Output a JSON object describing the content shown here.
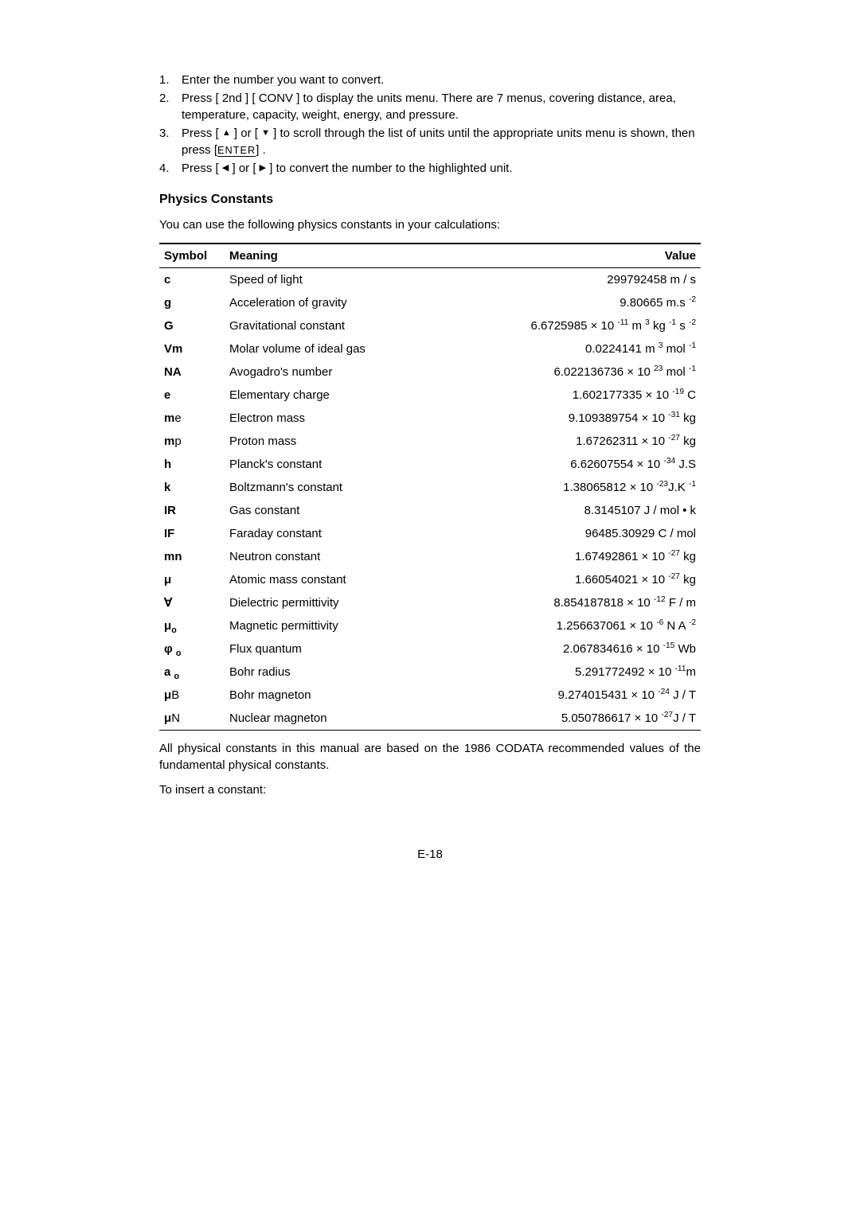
{
  "steps": [
    {
      "num": "1.",
      "html": "Enter the number you want to convert."
    },
    {
      "num": "2.",
      "html": "Press [ 2nd ] [ CONV ] to display the units menu. There are 7 menus, covering distance, area, temperature, capacity, weight, energy, and pressure."
    },
    {
      "num": "3.",
      "html": "Press [ <span class='tri'>▲</span> ] or [ <span class='tri'>▼</span> ] to scroll through the list of units until the appropriate units menu is shown, then press [<span class='enter-key'>ENTER</span>] ."
    },
    {
      "num": "4.",
      "html": "Press [ <span class='tri'>◀</span> ] or [ <span class='tri'>▶</span> ] to convert the number to the highlighted unit."
    }
  ],
  "section_title": "Physics Constants",
  "intro": "You can use the following physics constants in your calculations:",
  "header": {
    "symbol": "Symbol",
    "meaning": "Meaning",
    "value": "Value"
  },
  "rows": [
    {
      "sym": "c",
      "mean": "Speed of light",
      "val": "299792458 m / s"
    },
    {
      "sym": "g",
      "mean": "Acceleration of gravity",
      "val": "9.80665 m.s <sup>-2</sup>"
    },
    {
      "sym": "G",
      "mean": "Gravitational constant",
      "val": "6.6725985 × 10 <sup>-11</sup> m <sup>3</sup> kg <sup>-1</sup> s <sup>-2</sup>"
    },
    {
      "sym": "Vm",
      "mean": "Molar volume of ideal gas",
      "val": "0.0224141 m <sup>3</sup> mol <sup>-1</sup>"
    },
    {
      "sym": "NA",
      "mean": "Avogadro's number",
      "val": "6.022136736 × 10 <sup>23</sup> mol <sup>-1</sup>"
    },
    {
      "sym": "e",
      "mean": "Elementary charge",
      "val": "1.602177335 × 10 <sup>-19</sup> C"
    },
    {
      "sym": "m<span style='font-weight:normal'>e</span>",
      "mean": "Electron mass",
      "val": "9.109389754 × 10 <sup>-31</sup> kg"
    },
    {
      "sym": "m<span style='font-weight:normal'>p</span>",
      "mean": "Proton mass",
      "val": "1.67262311 × 10 <sup>-27</sup> kg"
    },
    {
      "sym": "h",
      "mean": "Planck's constant",
      "val": "6.62607554 × 10 <sup>-34</sup> J.S"
    },
    {
      "sym": "k",
      "mean": "Boltzmann's constant",
      "val": "1.38065812 × 10 <sup>-23</sup>J.K <sup>-1</sup>"
    },
    {
      "sym": "IR",
      "mean": "Gas constant",
      "val": "8.3145107 J / mol • k"
    },
    {
      "sym": "IF",
      "mean": "Faraday constant",
      "val": "96485.30929 C / mol"
    },
    {
      "sym": "mn",
      "mean": "Neutron constant",
      "val": "1.67492861 × 10 <sup>-27</sup> kg"
    },
    {
      "sym": "μ",
      "mean": "Atomic mass constant",
      "val": "1.66054021 × 10 <sup>-27</sup> kg"
    },
    {
      "sym": "∀",
      "mean": "Dielectric permittivity",
      "val": "8.854187818 × 10 <sup>-12</sup> F / m"
    },
    {
      "sym": "μ<sub>ο</sub>",
      "mean": "Magnetic permittivity",
      "val": "1.256637061 × 10 <sup>-6</sup> N A <sup>-2</sup>"
    },
    {
      "sym": "φ <sub>ο</sub>",
      "mean": "Flux quantum",
      "val": "2.067834616 × 10 <sup>-15</sup> Wb"
    },
    {
      "sym": "a <sub>ο</sub>",
      "mean": "Bohr radius",
      "val": "5.291772492 × 10 <sup>-11</sup>m"
    },
    {
      "sym": "μ<span style='font-weight:normal'>B</span>",
      "mean": "Bohr magneton",
      "val": "9.274015431 × 10 <sup>-24</sup> J / T"
    },
    {
      "sym": "μ<span style='font-weight:normal'>N</span>",
      "mean": "Nuclear magneton",
      "val": "5.050786617 × 10 <sup>-27</sup>J / T"
    }
  ],
  "note": "All physical constants in this manual are based on the 1986 CODATA recommended values of the fundamental physical constants.",
  "insert_note": "To insert a constant:",
  "page_num": "E-18"
}
